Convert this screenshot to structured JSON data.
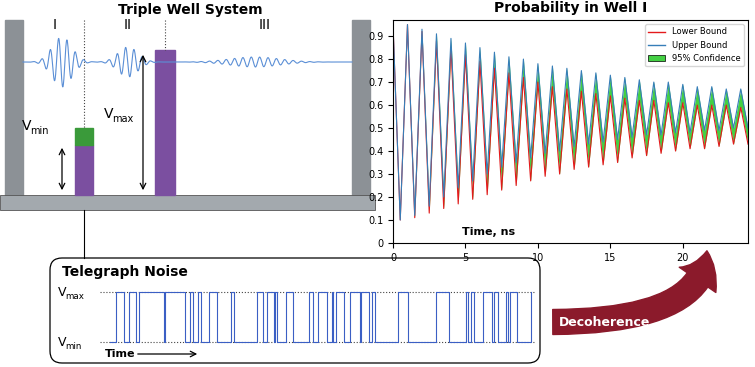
{
  "diagram": {
    "triple_well": {
      "title": "Triple Well System",
      "wells": [
        "I",
        "II",
        "III"
      ],
      "barrier_low": {
        "symbol": "V",
        "subscript": "min"
      },
      "barrier_high": {
        "symbol": "V",
        "subscript": "max"
      }
    },
    "telegraph_noise": {
      "title": "Telegraph Noise",
      "level_high": {
        "symbol": "V",
        "subscript": "max"
      },
      "level_low": {
        "symbol": "V",
        "subscript": "min"
      },
      "axis_label": "Time"
    },
    "arrow": {
      "label": "Decoherence"
    }
  },
  "chart_data": {
    "type": "line",
    "title": "Probability in Well I",
    "x_label": "Time, ns",
    "x": [
      0,
      0.5,
      1,
      1.5,
      2,
      2.5,
      3,
      3.5,
      4,
      4.5,
      5,
      5.5,
      6,
      6.5,
      7,
      7.5,
      8,
      8.5,
      9,
      9.5,
      10,
      10.5,
      11,
      11.5,
      12,
      12.5,
      13,
      13.5,
      14,
      14.5,
      15,
      15.5,
      16,
      16.5,
      17,
      17.5,
      18,
      18.5,
      19,
      19.5,
      20,
      20.5,
      21,
      21.5,
      22,
      22.5,
      23,
      23.5,
      24,
      24.5
    ],
    "series": [
      {
        "name": "Lower Bound",
        "color": "#e41a1c",
        "values": [
          0.95,
          0.1,
          0.95,
          0.11,
          0.92,
          0.13,
          0.88,
          0.15,
          0.85,
          0.17,
          0.82,
          0.19,
          0.79,
          0.21,
          0.76,
          0.23,
          0.74,
          0.25,
          0.72,
          0.27,
          0.7,
          0.29,
          0.68,
          0.3,
          0.67,
          0.32,
          0.66,
          0.33,
          0.65,
          0.34,
          0.64,
          0.35,
          0.63,
          0.37,
          0.62,
          0.38,
          0.62,
          0.39,
          0.61,
          0.4,
          0.61,
          0.41,
          0.6,
          0.41,
          0.6,
          0.42,
          0.6,
          0.43,
          0.59,
          0.43
        ]
      },
      {
        "name": "Upper Bound",
        "color": "#377eb8",
        "values": [
          0.95,
          0.1,
          0.95,
          0.12,
          0.93,
          0.16,
          0.91,
          0.2,
          0.89,
          0.24,
          0.87,
          0.27,
          0.85,
          0.3,
          0.83,
          0.33,
          0.81,
          0.35,
          0.8,
          0.37,
          0.78,
          0.39,
          0.77,
          0.4,
          0.76,
          0.42,
          0.75,
          0.43,
          0.74,
          0.44,
          0.73,
          0.45,
          0.72,
          0.46,
          0.71,
          0.47,
          0.7,
          0.47,
          0.7,
          0.48,
          0.69,
          0.48,
          0.68,
          0.49,
          0.68,
          0.49,
          0.67,
          0.5,
          0.67,
          0.5
        ]
      },
      {
        "name": "95% Confidence",
        "type": "fill_between",
        "color": "#44d044"
      }
    ],
    "xlim": [
      0,
      24.5
    ],
    "xticks": [
      0,
      5,
      10,
      15,
      20
    ],
    "ylim": [
      0,
      0.97
    ],
    "yticks": [
      0,
      0.1,
      0.2,
      0.3,
      0.4,
      0.5,
      0.6,
      0.7,
      0.8,
      0.9
    ],
    "legend": "upper right",
    "grid": false
  }
}
